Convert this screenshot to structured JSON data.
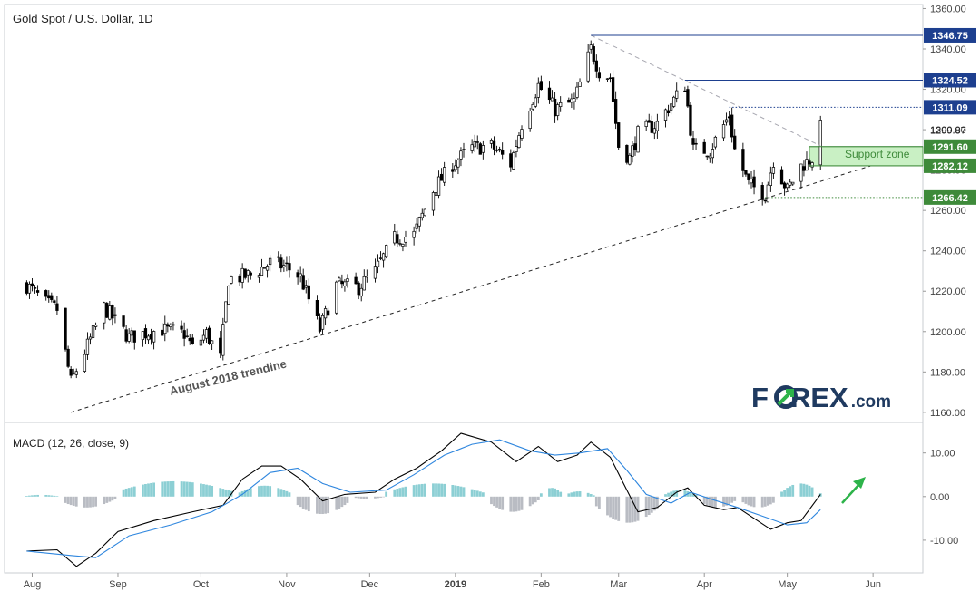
{
  "header": {
    "title": "Gold Spot / U.S. Dollar, 1D",
    "macd_title": "MACD (12, 26, close, 9)"
  },
  "annotations": {
    "trendline_label": "August 2018 trendine",
    "support_zone_label": "Support zone"
  },
  "logo": {
    "text_a": "F",
    "text_b": "REX",
    "text_c": ".com"
  },
  "colors": {
    "bull": "#ffffff",
    "bear": "#000000",
    "level_line": "#1d3f8f",
    "level_tag": "#1d3f8f",
    "support_tag": "#3e8a3a",
    "support_zone": "#c9f0c4",
    "macd_line": "#000000",
    "signal_line": "#2e86de",
    "hist_pos": "#8ccfd4",
    "hist_neg": "#b9bcc3",
    "arrow": "#2db34a",
    "logo_dark": "#1f3a60",
    "logo_green": "#2db34a"
  },
  "chart_data": [
    {
      "type": "candlestick",
      "title": "Gold Spot / U.S. Dollar, 1D",
      "x_ticks": [
        "Aug",
        "Sep",
        "Oct",
        "Nov",
        "Dec",
        "2019",
        "Feb",
        "Mar",
        "Apr",
        "May",
        "Jun"
      ],
      "y_ticks": [
        1160,
        1180,
        1200,
        1220,
        1240,
        1260,
        1280,
        1300,
        1320,
        1340,
        1360
      ],
      "y_tick_labels": [
        "1160.00",
        "1180.00",
        "1200.00",
        "1220.00",
        "1240.00",
        "1260.00",
        "1280.00",
        "1300.00",
        "1320.00",
        "1340.00",
        "1360.00"
      ],
      "ylim": [
        1155,
        1362
      ],
      "close_path": [
        [
          "2018-07-30",
          1223
        ],
        [
          "2018-08-06",
          1214
        ],
        [
          "2018-08-10",
          1211
        ],
        [
          "2018-08-15",
          1175
        ],
        [
          "2018-08-16",
          1178
        ],
        [
          "2018-08-21",
          1193
        ],
        [
          "2018-08-27",
          1212
        ],
        [
          "2018-09-05",
          1197
        ],
        [
          "2018-09-10",
          1199
        ],
        [
          "2018-09-17",
          1201
        ],
        [
          "2018-09-25",
          1199
        ],
        [
          "2018-09-28",
          1192
        ],
        [
          "2018-10-03",
          1199
        ],
        [
          "2018-10-08",
          1187
        ],
        [
          "2018-10-11",
          1226
        ],
        [
          "2018-10-19",
          1228
        ],
        [
          "2018-10-26",
          1234
        ],
        [
          "2018-11-01",
          1232
        ],
        [
          "2018-11-06",
          1227
        ],
        [
          "2018-11-13",
          1201
        ],
        [
          "2018-11-19",
          1223
        ],
        [
          "2018-11-27",
          1222
        ],
        [
          "2018-12-03",
          1230
        ],
        [
          "2018-12-10",
          1246
        ],
        [
          "2018-12-17",
          1248
        ],
        [
          "2018-12-24",
          1270
        ],
        [
          "2018-12-31",
          1283
        ],
        [
          "2019-01-07",
          1291
        ],
        [
          "2019-01-14",
          1292
        ],
        [
          "2019-01-21",
          1283
        ],
        [
          "2019-01-25",
          1303
        ],
        [
          "2019-01-31",
          1322
        ],
        [
          "2019-02-06",
          1310
        ],
        [
          "2019-02-13",
          1314
        ],
        [
          "2019-02-19",
          1340
        ],
        [
          "2019-02-22",
          1329
        ],
        [
          "2019-02-26",
          1326
        ],
        [
          "2019-03-01",
          1292
        ],
        [
          "2019-03-05",
          1286
        ],
        [
          "2019-03-08",
          1298
        ],
        [
          "2019-03-15",
          1303
        ],
        [
          "2019-03-20",
          1313
        ],
        [
          "2019-03-25",
          1322
        ],
        [
          "2019-03-28",
          1290
        ],
        [
          "2019-04-03",
          1290
        ],
        [
          "2019-04-10",
          1307
        ],
        [
          "2019-04-12",
          1290
        ],
        [
          "2019-04-17",
          1273
        ],
        [
          "2019-04-23",
          1268
        ],
        [
          "2019-04-26",
          1285
        ],
        [
          "2019-05-01",
          1270
        ],
        [
          "2019-05-06",
          1282
        ],
        [
          "2019-05-10",
          1286
        ],
        [
          "2019-05-13",
          1301
        ]
      ],
      "levels": [
        {
          "value": 1346.75,
          "label": "1346.75",
          "style": "solid",
          "x_start": "2019-02-19",
          "tag": "blue"
        },
        {
          "value": 1324.52,
          "label": "1324.52",
          "style": "solid",
          "x_start": "2019-03-25",
          "tag": "blue"
        },
        {
          "value": 1311.09,
          "label": "1311.09",
          "style": "dotted",
          "x_start": "2019-04-10",
          "tag": "blue"
        },
        {
          "value": 1299.87,
          "label": "1299.87",
          "style": "none",
          "tag": "plain"
        },
        {
          "value": 1291.6,
          "label": "1291.60",
          "style": "solid",
          "x_start": "2019-05-09",
          "tag": "green"
        },
        {
          "value": 1282.12,
          "label": "1282.12",
          "style": "solid",
          "x_start": "2019-05-09",
          "tag": "green"
        },
        {
          "value": 1266.42,
          "label": "1266.42",
          "style": "dotted",
          "x_start": "2019-04-23",
          "tag": "green"
        }
      ],
      "support_zone": {
        "low": 1282.12,
        "high": 1291.6,
        "x_start": "2019-05-09",
        "label": "Support zone"
      },
      "trendlines": [
        {
          "name": "August 2018 trendine",
          "from": [
            "2018-08-15",
            1160
          ],
          "to": [
            "2019-05-31",
            1282
          ],
          "style": "dashed"
        },
        {
          "name": "",
          "from": [
            "2019-02-19",
            1346.75
          ],
          "to": [
            "2019-05-13",
            1292
          ],
          "style": "dashed-gray"
        }
      ]
    },
    {
      "type": "line",
      "title": "MACD (12, 26, close, 9)",
      "y_ticks": [
        -10,
        0,
        10
      ],
      "y_tick_labels": [
        "-10.00",
        "0.00",
        "10.00"
      ],
      "ylim": [
        -17.5,
        17
      ],
      "series": [
        {
          "role": "macd",
          "points": [
            [
              "2018-07-30",
              -12.5
            ],
            [
              "2018-08-10",
              -12.2
            ],
            [
              "2018-08-17",
              -16.0
            ],
            [
              "2018-08-24",
              -13.0
            ],
            [
              "2018-09-01",
              -8.0
            ],
            [
              "2018-09-14",
              -5.5
            ],
            [
              "2018-09-28",
              -3.5
            ],
            [
              "2018-10-09",
              -2.0
            ],
            [
              "2018-10-16",
              4.0
            ],
            [
              "2018-10-23",
              7.0
            ],
            [
              "2018-10-30",
              7.0
            ],
            [
              "2018-11-06",
              4.0
            ],
            [
              "2018-11-14",
              -1.0
            ],
            [
              "2018-11-22",
              0.5
            ],
            [
              "2018-12-03",
              1.0
            ],
            [
              "2018-12-10",
              4.0
            ],
            [
              "2018-12-18",
              6.5
            ],
            [
              "2018-12-27",
              10.5
            ],
            [
              "2019-01-03",
              14.5
            ],
            [
              "2019-01-14",
              12.5
            ],
            [
              "2019-01-23",
              8.0
            ],
            [
              "2019-01-31",
              11.5
            ],
            [
              "2019-02-07",
              8.0
            ],
            [
              "2019-02-14",
              9.5
            ],
            [
              "2019-02-19",
              12.5
            ],
            [
              "2019-02-26",
              9.0
            ],
            [
              "2019-03-04",
              1.5
            ],
            [
              "2019-03-08",
              -3.5
            ],
            [
              "2019-03-15",
              -2.5
            ],
            [
              "2019-03-22",
              1.0
            ],
            [
              "2019-03-26",
              2.0
            ],
            [
              "2019-04-01",
              -2.0
            ],
            [
              "2019-04-08",
              -3.0
            ],
            [
              "2019-04-13",
              -2.5
            ],
            [
              "2019-04-19",
              -5.0
            ],
            [
              "2019-04-25",
              -7.5
            ],
            [
              "2019-05-01",
              -6.0
            ],
            [
              "2019-05-06",
              -5.5
            ],
            [
              "2019-05-13",
              0.5
            ]
          ]
        },
        {
          "role": "signal",
          "points": [
            [
              "2018-07-30",
              -12.5
            ],
            [
              "2018-08-15",
              -13.5
            ],
            [
              "2018-08-24",
              -14.0
            ],
            [
              "2018-09-05",
              -9.0
            ],
            [
              "2018-09-20",
              -6.5
            ],
            [
              "2018-10-05",
              -3.5
            ],
            [
              "2018-10-16",
              0.5
            ],
            [
              "2018-10-26",
              5.5
            ],
            [
              "2018-11-05",
              6.5
            ],
            [
              "2018-11-14",
              3.0
            ],
            [
              "2018-11-24",
              1.0
            ],
            [
              "2018-12-07",
              1.5
            ],
            [
              "2018-12-17",
              5.0
            ],
            [
              "2018-12-28",
              9.5
            ],
            [
              "2019-01-07",
              12.0
            ],
            [
              "2019-01-17",
              13.0
            ],
            [
              "2019-01-28",
              10.5
            ],
            [
              "2019-02-06",
              9.5
            ],
            [
              "2019-02-15",
              10.0
            ],
            [
              "2019-02-25",
              11.0
            ],
            [
              "2019-03-04",
              6.0
            ],
            [
              "2019-03-11",
              0.5
            ],
            [
              "2019-03-20",
              -1.5
            ],
            [
              "2019-03-27",
              1.0
            ],
            [
              "2019-04-03",
              -0.5
            ],
            [
              "2019-04-13",
              -2.5
            ],
            [
              "2019-04-22",
              -4.5
            ],
            [
              "2019-05-01",
              -6.5
            ],
            [
              "2019-05-08",
              -6.0
            ],
            [
              "2019-05-13",
              -3.0
            ]
          ]
        }
      ],
      "histogram_segments": [
        {
          "from": "2018-07-30",
          "to": "2018-08-10",
          "peak": 0.4
        },
        {
          "from": "2018-08-11",
          "to": "2018-08-31",
          "peak": -2.5
        },
        {
          "from": "2018-09-01",
          "to": "2018-10-14",
          "peak": 3.5
        },
        {
          "from": "2018-10-15",
          "to": "2018-11-03",
          "peak": 2.5
        },
        {
          "from": "2018-11-04",
          "to": "2018-11-24",
          "peak": -4.0
        },
        {
          "from": "2018-11-25",
          "to": "2018-12-06",
          "peak": -0.5
        },
        {
          "from": "2018-12-07",
          "to": "2019-01-12",
          "peak": 3.0
        },
        {
          "from": "2019-01-13",
          "to": "2019-01-31",
          "peak": -3.5
        },
        {
          "from": "2019-02-01",
          "to": "2019-02-09",
          "peak": 2.0
        },
        {
          "from": "2019-02-10",
          "to": "2019-02-20",
          "peak": 1.2
        },
        {
          "from": "2019-02-21",
          "to": "2019-03-17",
          "peak": -6.0
        },
        {
          "from": "2019-03-18",
          "to": "2019-03-29",
          "peak": 1.5
        },
        {
          "from": "2019-03-30",
          "to": "2019-04-13",
          "peak": -2.5
        },
        {
          "from": "2019-04-14",
          "to": "2019-04-28",
          "peak": -2.5
        },
        {
          "from": "2019-04-29",
          "to": "2019-05-13",
          "peak": 3.0
        }
      ]
    }
  ]
}
